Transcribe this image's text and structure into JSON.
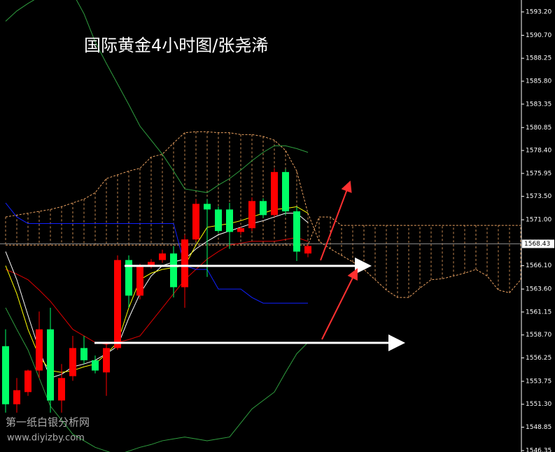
{
  "chart_data": {
    "type": "candlestick",
    "title": "国际黄金4小时图/张尧浠",
    "watermark": [
      "第一纸白银分析网",
      "www.diyizby.com"
    ],
    "up_color": "#ff0000",
    "down_color": "#00ff66",
    "ylim": [
      1546.2,
      1594.47
    ],
    "yticks": [
      {
        "value": 1593.2,
        "label": "1593.20"
      },
      {
        "value": 1590.7,
        "label": "1590.70"
      },
      {
        "value": 1588.25,
        "label": "1588.25"
      },
      {
        "value": 1585.8,
        "label": "1585.80"
      },
      {
        "value": 1583.35,
        "label": "1583.35"
      },
      {
        "value": 1580.85,
        "label": "1580.85"
      },
      {
        "value": 1578.4,
        "label": "1578.40"
      },
      {
        "value": 1575.95,
        "label": "1575.95"
      },
      {
        "value": 1573.5,
        "label": "1573.50"
      },
      {
        "value": 1571,
        "label": "1571.00"
      },
      {
        "value": 1566.1,
        "label": "1566.10"
      },
      {
        "value": 1563.6,
        "label": "1563.60"
      },
      {
        "value": 1561.15,
        "label": "1561.15"
      },
      {
        "value": 1558.7,
        "label": "1558.70"
      },
      {
        "value": 1556.25,
        "label": "1556.25"
      },
      {
        "value": 1553.75,
        "label": "1553.75"
      },
      {
        "value": 1551.3,
        "label": "1551.30"
      },
      {
        "value": 1548.85,
        "label": "1548.85"
      },
      {
        "value": 1546.35,
        "label": "1546.35"
      }
    ],
    "current_price": 1568.43,
    "candles": {
      "open": [
        1557.5,
        1551.3,
        1552.6,
        1554.9,
        1559.3,
        1551.7,
        1554.3,
        1557.3,
        1556.0,
        1554.7,
        1557.3,
        1566.7,
        1562.9,
        1566.1,
        1566.7,
        1567.4,
        1563.8,
        1568.9,
        1572.7,
        1572.1,
        1572.1,
        1569.7,
        1570.1,
        1573.0,
        1571.5,
        1576.1,
        1571.9,
        1567.4
      ],
      "high": [
        1559.3,
        1554.1,
        1555.0,
        1561.2,
        1561.6,
        1555.6,
        1558.6,
        1558.6,
        1556.5,
        1557.8,
        1567.2,
        1567.2,
        1566.3,
        1566.8,
        1567.8,
        1568.2,
        1569.4,
        1573.2,
        1573.2,
        1572.4,
        1572.8,
        1570.3,
        1573.4,
        1573.3,
        1576.5,
        1576.4,
        1572.4,
        1568.4
      ],
      "low": [
        1550.4,
        1550.4,
        1552.2,
        1554.1,
        1550.4,
        1550.4,
        1553.8,
        1555.6,
        1554.6,
        1552.2,
        1557.1,
        1561.6,
        1562.5,
        1565.8,
        1566.4,
        1562.7,
        1561.6,
        1568.7,
        1564.9,
        1569.6,
        1567.9,
        1569.4,
        1569.8,
        1571.2,
        1571.3,
        1571.5,
        1566.6,
        1567.0
      ],
      "close": [
        1551.3,
        1552.8,
        1554.9,
        1559.3,
        1551.7,
        1554.1,
        1557.3,
        1556.0,
        1554.9,
        1557.3,
        1566.7,
        1562.9,
        1566.1,
        1566.5,
        1567.4,
        1563.8,
        1568.9,
        1572.7,
        1572.1,
        1569.8,
        1569.7,
        1570.1,
        1573.0,
        1571.5,
        1576.1,
        1571.9,
        1567.6,
        1568.2
      ]
    },
    "overlays": [
      {
        "color": "#2f9e3f",
        "values": [
          1592.2,
          1593.3,
          1594.1,
          1594.8,
          1595.6,
          1595.6,
          1595.2,
          1593.0,
          1590.0,
          1587.7,
          1585.5,
          1583.3,
          1581.0,
          1579.5,
          1578.0,
          1576.2,
          1574.3,
          1574.1,
          1573.9,
          1574.7,
          1575.4,
          1576.3,
          1577.3,
          1578.2,
          1578.9,
          1578.9,
          1578.6,
          1578.2
        ]
      },
      {
        "color": "#2f9e3f",
        "values": [
          1561.6,
          1559.3,
          1557.1,
          1554.1,
          1551.1,
          1549.6,
          1548.1,
          1547.4,
          1546.7,
          1546.3,
          1545.9,
          1546.3,
          1546.7,
          1547.0,
          1547.4,
          1547.6,
          1547.8,
          1547.6,
          1547.4,
          1547.6,
          1547.8,
          1549.3,
          1550.8,
          1551.7,
          1552.6,
          1554.7,
          1556.7,
          1557.9
        ]
      },
      {
        "color": "#dd0000",
        "values": [
          1565.7,
          1565.2,
          1564.6,
          1563.5,
          1562.3,
          1560.8,
          1559.3,
          1558.6,
          1557.9,
          1557.7,
          1557.9,
          1558.2,
          1558.6,
          1560.1,
          1561.6,
          1563.1,
          1564.6,
          1565.7,
          1566.8,
          1567.6,
          1568.3,
          1568.5,
          1568.7,
          1568.7,
          1568.7,
          1568.9,
          1569.1,
          1568.7
        ]
      },
      {
        "color": "#ffffff",
        "values": [
          1567.6,
          1564.6,
          1560.8,
          1557.1,
          1554.1,
          1554.5,
          1555.3,
          1555.6,
          1556.0,
          1556.7,
          1557.5,
          1560.5,
          1563.1,
          1565.0,
          1566.1,
          1566.5,
          1566.8,
          1567.9,
          1568.7,
          1569.4,
          1569.8,
          1570.2,
          1570.6,
          1570.9,
          1571.3,
          1571.7,
          1571.7,
          1570.7
        ]
      },
      {
        "color": "#ffff00",
        "values": [
          1566.1,
          1563.1,
          1559.3,
          1556.4,
          1554.9,
          1554.7,
          1554.9,
          1555.3,
          1555.6,
          1556.7,
          1557.9,
          1561.6,
          1564.6,
          1565.3,
          1565.7,
          1565.9,
          1566.1,
          1568.3,
          1570.2,
          1570.4,
          1570.6,
          1570.9,
          1571.3,
          1571.7,
          1572.1,
          1572.2,
          1572.4,
          1571.7
        ]
      },
      {
        "color": "#1020ff",
        "values": [
          1572.8,
          1571.3,
          1570.6,
          1570.6,
          1570.6,
          1570.6,
          1570.6,
          1570.6,
          1570.6,
          1570.6,
          1570.6,
          1570.6,
          1570.6,
          1570.6,
          1570.6,
          1570.6,
          1566.1,
          1565.7,
          1565.7,
          1563.6,
          1563.6,
          1563.6,
          1562.7,
          1562.1,
          1562.1,
          1562.1,
          1562.1,
          1562.1
        ]
      }
    ],
    "cloud": {
      "color": "#e8a060",
      "span_a": [
        1571.3,
        1571.5,
        1571.7,
        1571.9,
        1572.1,
        1572.4,
        1572.8,
        1573.2,
        1573.9,
        1575.4,
        1575.8,
        1576.2,
        1576.5,
        1577.7,
        1578.0,
        1579.2,
        1580.3,
        1580.4,
        1580.4,
        1580.3,
        1580.3,
        1580.1,
        1580.1,
        1579.9,
        1579.5,
        1578.4,
        1576.2,
        1571.7,
        1568.7,
        1567.9,
        1567.2,
        1566.5,
        1565.7,
        1564.6,
        1563.5,
        1562.7,
        1562.7,
        1563.7,
        1564.6,
        1564.7,
        1565.0,
        1565.3,
        1565.7,
        1565.0,
        1563.5,
        1563.2,
        1564.6
      ],
      "span_b": [
        1568.3,
        1568.3,
        1568.3,
        1568.3,
        1568.3,
        1568.3,
        1568.3,
        1568.3,
        1568.3,
        1568.3,
        1568.3,
        1568.3,
        1568.3,
        1568.3,
        1568.3,
        1568.3,
        1568.3,
        1568.3,
        1568.3,
        1568.3,
        1568.3,
        1568.3,
        1568.3,
        1568.3,
        1568.3,
        1568.3,
        1568.3,
        1568.3,
        1571.3,
        1571.3,
        1570.4,
        1570.4,
        1570.4,
        1570.4,
        1570.4,
        1570.4,
        1570.4,
        1570.4,
        1570.4,
        1570.4,
        1570.4,
        1570.4,
        1570.4,
        1570.4,
        1570.4,
        1570.4,
        1570.4
      ]
    }
  }
}
